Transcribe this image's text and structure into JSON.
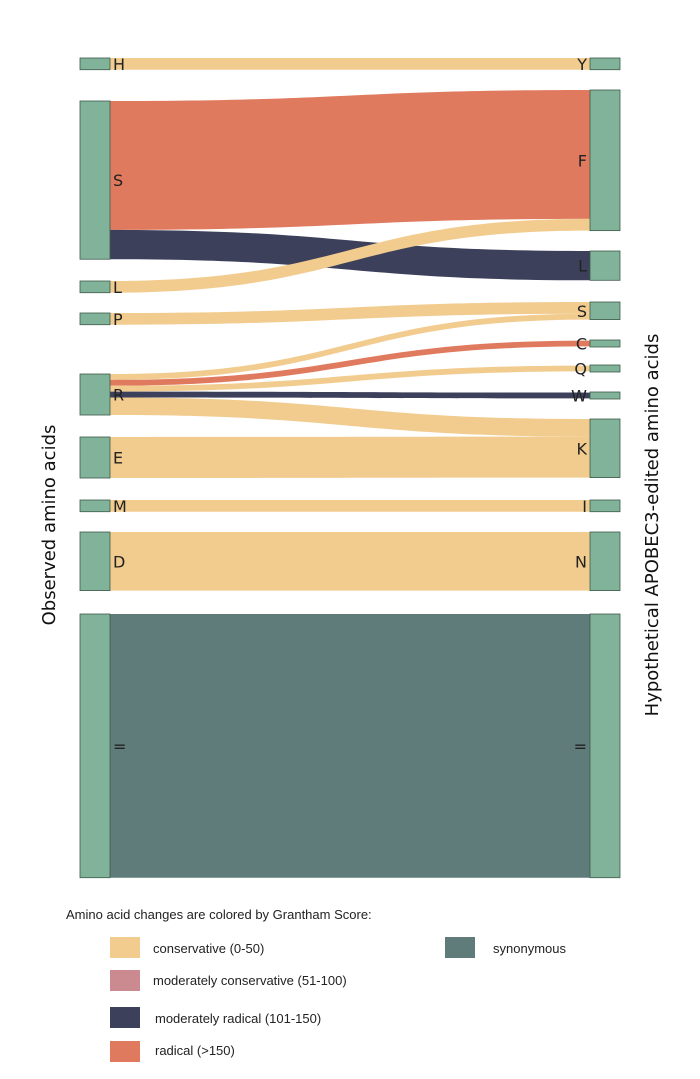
{
  "left_axis_title": "Observed amino acids",
  "right_axis_title": "Hypothetical APOBEC3-edited amino acids",
  "legend": {
    "title": "Amino acid changes are colored by Grantham Score:",
    "items": [
      {
        "label": "conservative (0-50)",
        "color": "#F2CC8F"
      },
      {
        "label": "moderately conservative (51-100)",
        "color": "#CB8A8F"
      },
      {
        "label": "moderately radical (101-150)",
        "color": "#3D405B"
      },
      {
        "label": "radical (>150)",
        "color": "#E07A5F"
      },
      {
        "label": "synonymous",
        "color": "#5F7B7A"
      }
    ]
  },
  "node_color": "#81B29A",
  "chart_data": {
    "type": "sankey",
    "source_nodes": [
      "H",
      "S",
      "L",
      "P",
      "R",
      "E",
      "M",
      "D",
      "="
    ],
    "target_nodes": [
      "Y",
      "F",
      "L",
      "S",
      "C",
      "Q",
      "W",
      "K",
      "I",
      "N",
      "="
    ],
    "flows": [
      {
        "source": "H",
        "target": "Y",
        "value": 2,
        "category": "conservative (0-50)"
      },
      {
        "source": "S",
        "target": "F",
        "value": 22,
        "category": "radical (>150)"
      },
      {
        "source": "S",
        "target": "L",
        "value": 5,
        "category": "moderately radical (101-150)"
      },
      {
        "source": "L",
        "target": "F",
        "value": 2,
        "category": "conservative (0-50)"
      },
      {
        "source": "P",
        "target": "S",
        "value": 2,
        "category": "conservative (0-50)"
      },
      {
        "source": "R",
        "target": "S",
        "value": 1,
        "category": "conservative (0-50)"
      },
      {
        "source": "R",
        "target": "C",
        "value": 1,
        "category": "radical (>150)"
      },
      {
        "source": "R",
        "target": "Q",
        "value": 1,
        "category": "conservative (0-50)"
      },
      {
        "source": "R",
        "target": "W",
        "value": 1,
        "category": "moderately radical (101-150)"
      },
      {
        "source": "R",
        "target": "K",
        "value": 3,
        "category": "conservative (0-50)"
      },
      {
        "source": "E",
        "target": "K",
        "value": 7,
        "category": "conservative (0-50)"
      },
      {
        "source": "M",
        "target": "I",
        "value": 2,
        "category": "conservative (0-50)"
      },
      {
        "source": "D",
        "target": "N",
        "value": 10,
        "category": "conservative (0-50)"
      },
      {
        "source": "=",
        "target": "=",
        "value": 45,
        "category": "synonymous"
      }
    ]
  }
}
